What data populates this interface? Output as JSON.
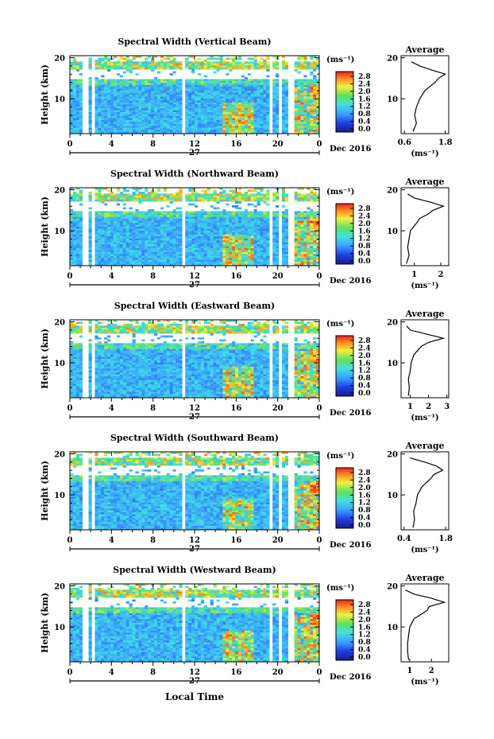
{
  "figure": {
    "x_axis_title": "Local Time",
    "date_label": "Dec 2016",
    "day_label": "27"
  },
  "colorbar": {
    "unit_label": "(ms⁻¹)",
    "tick_labels": [
      "2.8",
      "2.4",
      "2.0",
      "1.6",
      "1.2",
      "0.8",
      "0.4",
      "0.0"
    ]
  },
  "chart_data": [
    {
      "type": "heatmap",
      "title": "Spectral Width (Vertical Beam)",
      "ylabel": "Height (km)",
      "xlabel": "Local Time",
      "x_ticks": [
        "0",
        "4",
        "8",
        "12",
        "16",
        "20",
        "0"
      ],
      "y_ticks": [
        "10",
        "20"
      ],
      "xlim": [
        0,
        24
      ],
      "ylim": [
        1.5,
        20.5
      ],
      "colorbar_range": [
        0.0,
        3.0
      ],
      "profile": {
        "title": "Average",
        "xlabel": "(ms⁻¹)",
        "ylabel": "Height (km)",
        "x_ticks": [
          "0.6",
          "1.8"
        ],
        "xlim": [
          0.5,
          1.9
        ],
        "heights": [
          2,
          4,
          6,
          8,
          10,
          12,
          13,
          14,
          15,
          16,
          17,
          18,
          19
        ],
        "values": [
          0.85,
          0.95,
          0.9,
          0.95,
          1.05,
          1.2,
          1.35,
          1.5,
          1.6,
          1.8,
          1.4,
          1.05,
          0.8
        ]
      }
    },
    {
      "type": "heatmap",
      "title": "Spectral Width (Northward Beam)",
      "ylabel": "Height (km)",
      "xlabel": "Local Time",
      "x_ticks": [
        "0",
        "4",
        "8",
        "12",
        "16",
        "20",
        "0"
      ],
      "y_ticks": [
        "10",
        "20"
      ],
      "xlim": [
        0,
        24
      ],
      "ylim": [
        1.5,
        20.5
      ],
      "colorbar_range": [
        0.0,
        3.0
      ],
      "profile": {
        "title": "Average",
        "xlabel": "(ms⁻¹)",
        "ylabel": "Height (km)",
        "x_ticks": [
          "1",
          "2"
        ],
        "xlim": [
          0.5,
          2.3
        ],
        "heights": [
          2,
          4,
          6,
          8,
          10,
          12,
          13,
          14,
          15,
          16,
          17,
          18,
          19
        ],
        "values": [
          0.7,
          0.8,
          0.75,
          0.8,
          0.85,
          1.1,
          1.2,
          1.5,
          1.7,
          2.1,
          1.6,
          1.0,
          0.75
        ]
      }
    },
    {
      "type": "heatmap",
      "title": "Spectral Width (Eastward Beam)",
      "ylabel": "Height (km)",
      "xlabel": "Local Time",
      "x_ticks": [
        "0",
        "4",
        "8",
        "12",
        "16",
        "20",
        "0"
      ],
      "y_ticks": [
        "10",
        "20"
      ],
      "xlim": [
        0,
        24
      ],
      "ylim": [
        1.5,
        20.5
      ],
      "colorbar_range": [
        0.0,
        3.0
      ],
      "profile": {
        "title": "Average",
        "xlabel": "(ms⁻¹)",
        "ylabel": "Height (km)",
        "x_ticks": [
          "1",
          "2",
          "3"
        ],
        "xlim": [
          0.5,
          3.1
        ],
        "heights": [
          2,
          4,
          6,
          8,
          10,
          12,
          13,
          14,
          15,
          16,
          17,
          18,
          19
        ],
        "values": [
          0.9,
          0.95,
          0.9,
          1.0,
          1.05,
          1.2,
          1.4,
          1.6,
          2.0,
          2.8,
          1.9,
          1.0,
          0.8
        ]
      }
    },
    {
      "type": "heatmap",
      "title": "Spectral Width (Southward Beam)",
      "ylabel": "Height (km)",
      "xlabel": "Local Time",
      "x_ticks": [
        "0",
        "4",
        "8",
        "12",
        "16",
        "20",
        "0"
      ],
      "y_ticks": [
        "10",
        "20"
      ],
      "xlim": [
        0,
        24
      ],
      "ylim": [
        1.5,
        20.5
      ],
      "colorbar_range": [
        0.0,
        3.0
      ],
      "profile": {
        "title": "Average",
        "xlabel": "(ms⁻¹)",
        "ylabel": "Height (km)",
        "x_ticks": [
          "0.4",
          "1.8"
        ],
        "xlim": [
          0.3,
          1.9
        ],
        "heights": [
          2,
          4,
          6,
          8,
          10,
          12,
          13,
          14,
          15,
          16,
          17,
          18,
          19
        ],
        "values": [
          0.7,
          0.75,
          0.72,
          0.8,
          0.85,
          1.0,
          1.15,
          1.3,
          1.4,
          1.7,
          1.5,
          1.1,
          0.6
        ]
      }
    },
    {
      "type": "heatmap",
      "title": "Spectral Width (Westward Beam)",
      "ylabel": "Height (km)",
      "xlabel": "Local Time",
      "x_ticks": [
        "0",
        "4",
        "8",
        "12",
        "16",
        "20",
        "0"
      ],
      "y_ticks": [
        "10",
        "20"
      ],
      "xlim": [
        0,
        24
      ],
      "ylim": [
        1.5,
        20.5
      ],
      "colorbar_range": [
        0.0,
        3.0
      ],
      "profile": {
        "title": "Average",
        "xlabel": "(ms⁻¹)",
        "ylabel": "Height (km)",
        "x_ticks": [
          "1",
          "2"
        ],
        "xlim": [
          0.6,
          2.8
        ],
        "heights": [
          2,
          4,
          6,
          8,
          10,
          12,
          13,
          14,
          15,
          16,
          17,
          18,
          19
        ],
        "values": [
          0.95,
          0.9,
          0.9,
          0.95,
          1.0,
          1.2,
          1.5,
          1.8,
          1.9,
          2.6,
          2.0,
          1.2,
          0.8
        ]
      }
    }
  ]
}
